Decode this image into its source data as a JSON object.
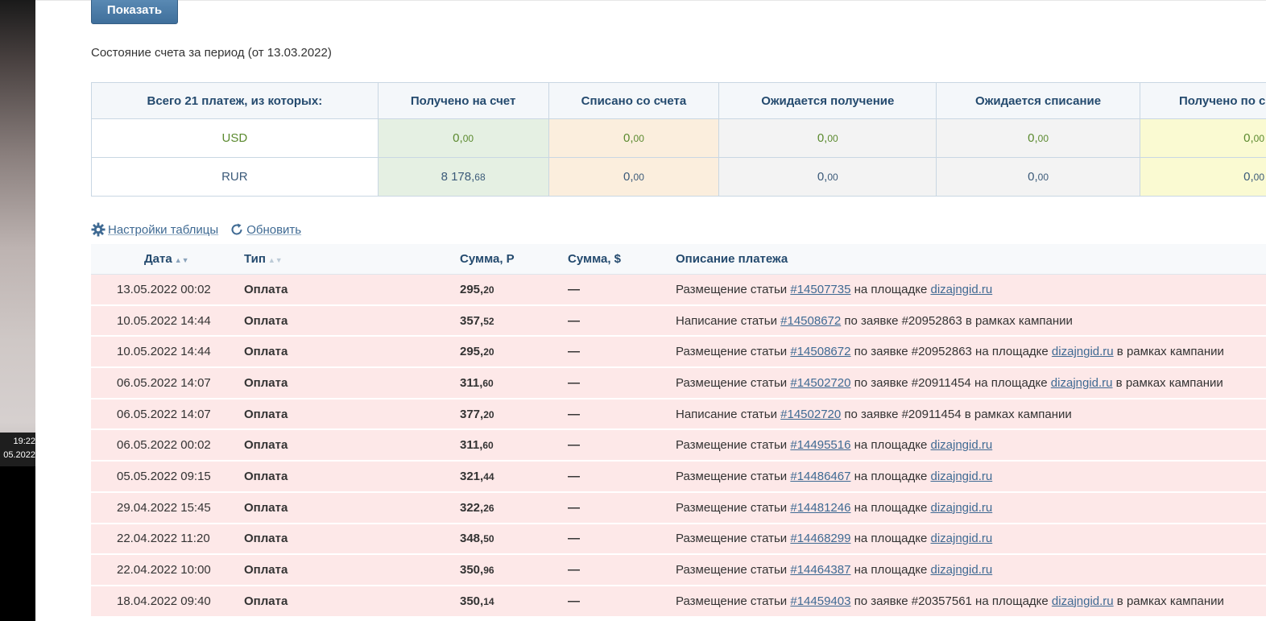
{
  "desktop": {
    "time": "19:22",
    "date": "05.2022"
  },
  "show_button": "Показать",
  "period_title": "Состояние счета за период (от 13.03.2022)",
  "summary": {
    "headers": [
      "Всего 21 платеж, из которых:",
      "Получено на счет",
      "Списано со счета",
      "Ожидается получение",
      "Ожидается списание",
      "Получено по с"
    ],
    "rows": [
      {
        "currency": "USD",
        "values": [
          [
            "0,",
            "00"
          ],
          [
            "0,",
            "00"
          ],
          [
            "0,",
            "00"
          ],
          [
            "0,",
            "00"
          ],
          [
            "0,",
            "00"
          ]
        ]
      },
      {
        "currency": "RUR",
        "values": [
          [
            "8 178,",
            "68"
          ],
          [
            "0,",
            "00"
          ],
          [
            "0,",
            "00"
          ],
          [
            "0,",
            "00"
          ],
          [
            "0,",
            "00"
          ]
        ]
      }
    ]
  },
  "toolbar": {
    "settings": "Настройки таблицы",
    "refresh": "Обновить"
  },
  "payments": {
    "headers": {
      "date": "Дата",
      "type": "Тип",
      "sum_rub": "Сумма, Р",
      "sum_usd": "Сумма, $",
      "desc": "Описание платежа"
    },
    "rows": [
      {
        "date": "13.05.2022 00:02",
        "type": "Оплата",
        "rub_int": "295,",
        "rub_dec": "20",
        "usd": "—",
        "d1": "Размещение статьи ",
        "link": "#14507735",
        "d2": " на площадке ",
        "site": "dizajngid.ru",
        "d3": ""
      },
      {
        "date": "10.05.2022 14:44",
        "type": "Оплата",
        "rub_int": "357,",
        "rub_dec": "52",
        "usd": "—",
        "d1": "Написание статьи ",
        "link": "#14508672",
        "d2": " по заявке #20952863 в рамках кампании",
        "site": "",
        "d3": ""
      },
      {
        "date": "10.05.2022 14:44",
        "type": "Оплата",
        "rub_int": "295,",
        "rub_dec": "20",
        "usd": "—",
        "d1": "Размещение статьи ",
        "link": "#14508672",
        "d2": " по заявке #20952863 на площадке ",
        "site": "dizajngid.ru",
        "d3": " в рамках кампании"
      },
      {
        "date": "06.05.2022 14:07",
        "type": "Оплата",
        "rub_int": "311,",
        "rub_dec": "60",
        "usd": "—",
        "d1": "Размещение статьи ",
        "link": "#14502720",
        "d2": " по заявке #20911454 на площадке ",
        "site": "dizajngid.ru",
        "d3": " в рамках кампании"
      },
      {
        "date": "06.05.2022 14:07",
        "type": "Оплата",
        "rub_int": "377,",
        "rub_dec": "20",
        "usd": "—",
        "d1": "Написание статьи ",
        "link": "#14502720",
        "d2": " по заявке #20911454 в рамках кампании",
        "site": "",
        "d3": ""
      },
      {
        "date": "06.05.2022 00:02",
        "type": "Оплата",
        "rub_int": "311,",
        "rub_dec": "60",
        "usd": "—",
        "d1": "Размещение статьи ",
        "link": "#14495516",
        "d2": " на площадке ",
        "site": "dizajngid.ru",
        "d3": ""
      },
      {
        "date": "05.05.2022 09:15",
        "type": "Оплата",
        "rub_int": "321,",
        "rub_dec": "44",
        "usd": "—",
        "d1": "Размещение статьи ",
        "link": "#14486467",
        "d2": " на площадке ",
        "site": "dizajngid.ru",
        "d3": ""
      },
      {
        "date": "29.04.2022 15:45",
        "type": "Оплата",
        "rub_int": "322,",
        "rub_dec": "26",
        "usd": "—",
        "d1": "Размещение статьи ",
        "link": "#14481246",
        "d2": " на площадке ",
        "site": "dizajngid.ru",
        "d3": ""
      },
      {
        "date": "22.04.2022 11:20",
        "type": "Оплата",
        "rub_int": "348,",
        "rub_dec": "50",
        "usd": "—",
        "d1": "Размещение статьи ",
        "link": "#14468299",
        "d2": " на площадке ",
        "site": "dizajngid.ru",
        "d3": ""
      },
      {
        "date": "22.04.2022 10:00",
        "type": "Оплата",
        "rub_int": "350,",
        "rub_dec": "96",
        "usd": "—",
        "d1": "Размещение статьи ",
        "link": "#14464387",
        "d2": " на площадке ",
        "site": "dizajngid.ru",
        "d3": ""
      },
      {
        "date": "18.04.2022 09:40",
        "type": "Оплата",
        "rub_int": "350,",
        "rub_dec": "14",
        "usd": "—",
        "d1": "Размещение статьи ",
        "link": "#14459403",
        "d2": " по заявке #20357561 на площадке ",
        "site": "dizajngid.ru",
        "d3": " в рамках кампании"
      }
    ]
  },
  "colors": {
    "accent": "#3f6a93",
    "type_red": "#a42a2f",
    "row_bg": "#fde8e8",
    "received_bg": "#e5f0e3",
    "debited_bg": "#fbeedd",
    "pending_bg": "#f3f3f3",
    "last_bg": "#fafad2"
  },
  "icons": {
    "settings": "gear-icon",
    "refresh": "refresh-icon"
  }
}
